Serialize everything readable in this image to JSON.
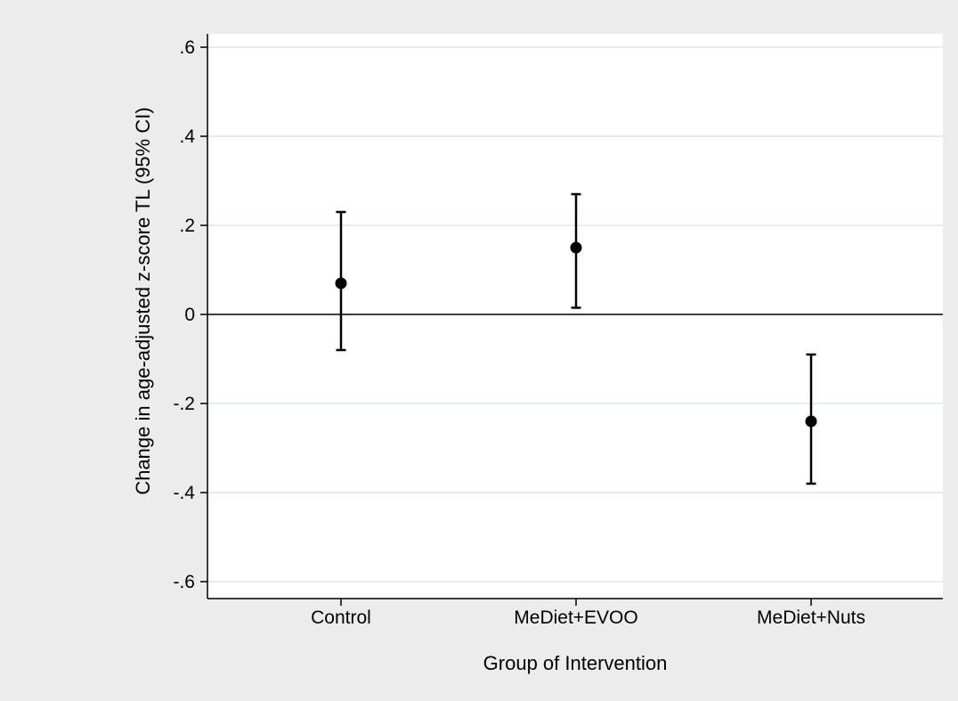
{
  "colors": {
    "outer_background": "#ececec",
    "plot_background": "#ffffff",
    "gridline": "#dbe8ec",
    "axis": "#000000",
    "marker": "#000000",
    "zero_line": "#000000"
  },
  "chart_data": {
    "type": "scatter",
    "subtype": "point-with-error-bars",
    "title": "",
    "xlabel": "Group of Intervention",
    "ylabel": "Change in age-adjusted z-score TL (95% CI)",
    "categories": [
      "Control",
      "MeDiet+EVOO",
      "MeDiet+Nuts"
    ],
    "points": [
      {
        "category": "Control",
        "estimate": 0.07,
        "ci_lower": -0.08,
        "ci_upper": 0.23
      },
      {
        "category": "MeDiet+EVOO",
        "estimate": 0.15,
        "ci_lower": 0.015,
        "ci_upper": 0.27
      },
      {
        "category": "MeDiet+Nuts",
        "estimate": -0.24,
        "ci_lower": -0.38,
        "ci_upper": -0.09
      }
    ],
    "ylim": [
      -0.64,
      0.64
    ],
    "yticks": [
      -0.6,
      -0.4,
      -0.2,
      0,
      0.2,
      0.4,
      0.6
    ],
    "ytick_labels": [
      "-.6",
      "-.4",
      "-.2",
      "0",
      ".2",
      ".4",
      ".6"
    ],
    "reference_line_y": 0,
    "grid": true,
    "legend": "none"
  }
}
